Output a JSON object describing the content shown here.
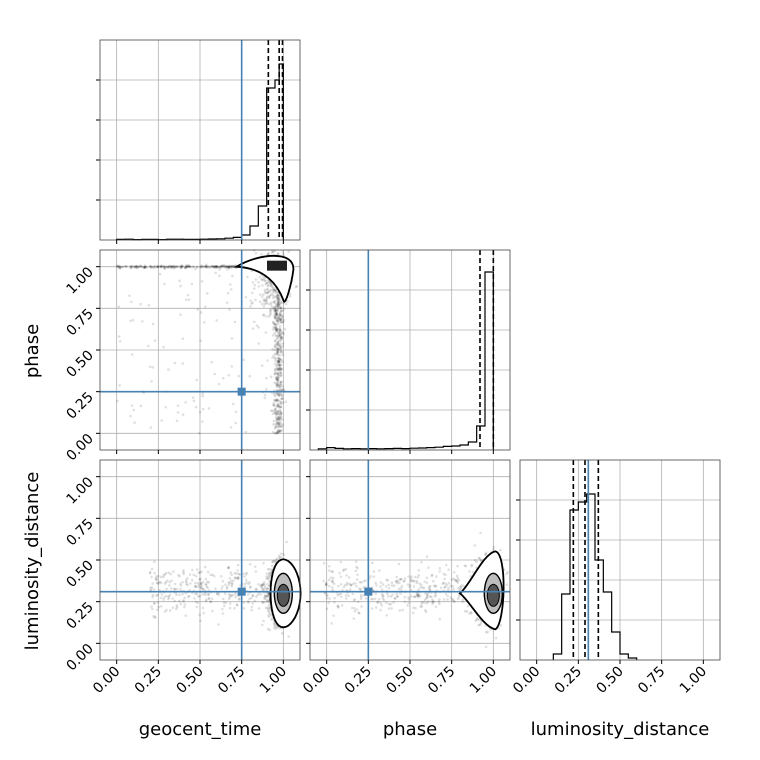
{
  "chart_data": {
    "type": "corner",
    "parameters": [
      "geocent_time",
      "phase",
      "luminosity_distance"
    ],
    "injection": {
      "geocent_time": 0.75,
      "phase": 0.25,
      "luminosity_distance": 0.31
    },
    "truth_color": "#4682b4",
    "tick_labels": [
      "0.00",
      "0.25",
      "0.50",
      "0.75",
      "1.00"
    ],
    "grid": true,
    "histograms": {
      "geocent_time": {
        "xlim": [
          -0.1,
          1.1
        ],
        "ymax": 1.0,
        "bins": [
          [
            0.0,
            0.05,
            0.003
          ],
          [
            0.05,
            0.1,
            0.004
          ],
          [
            0.1,
            0.15,
            0.002
          ],
          [
            0.15,
            0.2,
            0.003
          ],
          [
            0.2,
            0.25,
            0.003
          ],
          [
            0.25,
            0.3,
            0.002
          ],
          [
            0.3,
            0.35,
            0.004
          ],
          [
            0.35,
            0.4,
            0.004
          ],
          [
            0.4,
            0.45,
            0.003
          ],
          [
            0.45,
            0.5,
            0.003
          ],
          [
            0.5,
            0.55,
            0.004
          ],
          [
            0.55,
            0.6,
            0.005
          ],
          [
            0.6,
            0.65,
            0.006
          ],
          [
            0.65,
            0.7,
            0.009
          ],
          [
            0.7,
            0.75,
            0.013
          ],
          [
            0.75,
            0.8,
            0.025
          ],
          [
            0.8,
            0.85,
            0.07
          ],
          [
            0.85,
            0.9,
            0.17
          ],
          [
            0.9,
            0.95,
            0.76
          ],
          [
            0.95,
            0.975,
            0.8
          ],
          [
            0.975,
            1.0,
            0.88
          ]
        ],
        "quantiles": [
          0.91,
          0.975,
          0.995
        ]
      },
      "phase": {
        "xlim": [
          -0.1,
          1.1
        ],
        "ymax": 1.0,
        "bins": [
          [
            -0.05,
            0.0,
            0.006
          ],
          [
            0.0,
            0.05,
            0.012
          ],
          [
            0.05,
            0.1,
            0.008
          ],
          [
            0.1,
            0.15,
            0.006
          ],
          [
            0.15,
            0.2,
            0.007
          ],
          [
            0.2,
            0.25,
            0.006
          ],
          [
            0.25,
            0.3,
            0.007
          ],
          [
            0.3,
            0.35,
            0.006
          ],
          [
            0.35,
            0.4,
            0.007
          ],
          [
            0.4,
            0.45,
            0.008
          ],
          [
            0.45,
            0.5,
            0.007
          ],
          [
            0.5,
            0.55,
            0.009
          ],
          [
            0.55,
            0.6,
            0.01
          ],
          [
            0.6,
            0.65,
            0.012
          ],
          [
            0.65,
            0.7,
            0.014
          ],
          [
            0.7,
            0.75,
            0.018
          ],
          [
            0.75,
            0.8,
            0.02
          ],
          [
            0.8,
            0.85,
            0.025
          ],
          [
            0.85,
            0.9,
            0.04
          ],
          [
            0.9,
            0.95,
            0.12
          ],
          [
            0.95,
            1.0,
            0.89
          ]
        ],
        "quantiles": [
          0.92,
          1.0
        ]
      },
      "luminosity_distance": {
        "xlim": [
          -0.1,
          1.1
        ],
        "ymax": 1.0,
        "bins": [
          [
            0.1,
            0.15,
            0.03
          ],
          [
            0.15,
            0.2,
            0.33
          ],
          [
            0.2,
            0.25,
            0.75
          ],
          [
            0.25,
            0.3,
            0.79
          ],
          [
            0.3,
            0.35,
            0.83
          ],
          [
            0.35,
            0.4,
            0.5
          ],
          [
            0.4,
            0.45,
            0.34
          ],
          [
            0.45,
            0.5,
            0.14
          ],
          [
            0.5,
            0.55,
            0.03
          ],
          [
            0.55,
            0.6,
            0.01
          ]
        ],
        "quantiles": [
          0.22,
          0.29,
          0.37
        ]
      }
    },
    "scatter_2d": [
      {
        "x": "geocent_time",
        "y": "phase",
        "xlim": [
          -0.1,
          1.1
        ],
        "ylim": [
          -0.1,
          1.1
        ]
      },
      {
        "x": "geocent_time",
        "y": "luminosity_distance",
        "xlim": [
          -0.1,
          1.1
        ],
        "ylim": [
          -0.1,
          1.1
        ]
      },
      {
        "x": "phase",
        "y": "luminosity_distance",
        "xlim": [
          -0.1,
          1.1
        ],
        "ylim": [
          -0.1,
          1.1
        ]
      }
    ]
  }
}
